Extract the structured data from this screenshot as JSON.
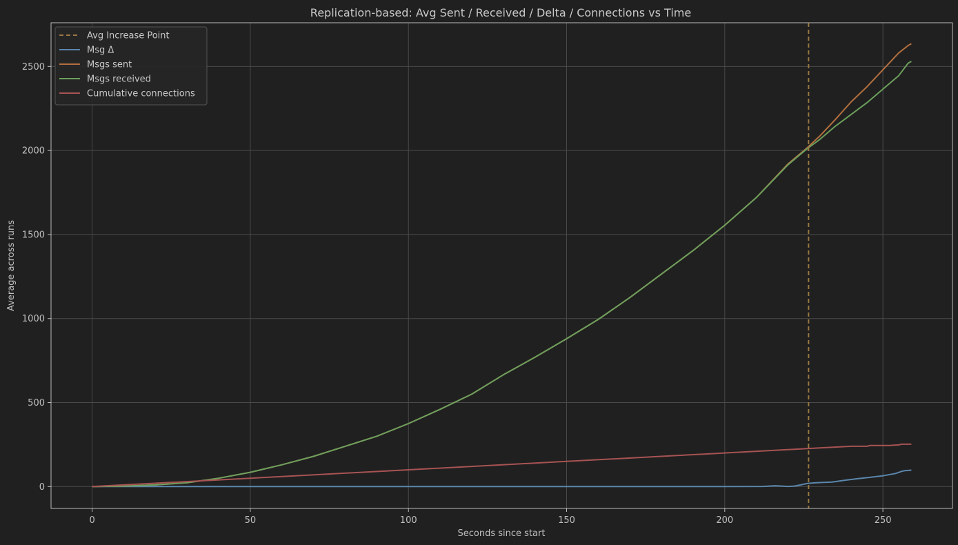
{
  "colors": {
    "background": "#202020",
    "axes_face": "#202020",
    "grid": "#4a4a4a",
    "spine": "#bdbdbd",
    "text": "#c8c8c8",
    "legend_bg": "#262626",
    "legend_edge": "#555555"
  },
  "chart_data": {
    "type": "line",
    "title": "Replication-based: Avg Sent / Received / Delta / Connections vs Time",
    "xlabel": "Seconds since start",
    "ylabel": "Average across runs",
    "xlim": [
      -13,
      272
    ],
    "ylim": [
      -130,
      2760
    ],
    "xticks": [
      0,
      50,
      100,
      150,
      200,
      250
    ],
    "yticks": [
      0,
      500,
      1000,
      1500,
      2000,
      2500
    ],
    "grid": true,
    "legend_position": "top-left",
    "vline": {
      "name": "Avg Increase Point",
      "x": 226.5,
      "color": "#9a7840",
      "style": "dashed"
    },
    "series": [
      {
        "name": "Msg Δ",
        "color": "#5b87ad",
        "x": [
          0,
          200,
          212,
          216,
          218,
          220,
          222,
          224,
          226,
          228,
          230,
          234,
          238,
          242,
          246,
          250,
          254,
          256,
          257,
          259
        ],
        "y": [
          0,
          0,
          1,
          5,
          3,
          1,
          3,
          10,
          18,
          22,
          24,
          27,
          38,
          47,
          55,
          64,
          78,
          91,
          95,
          98
        ]
      },
      {
        "name": "Msgs sent",
        "color": "#b36f3f",
        "x": [
          0,
          10,
          20,
          30,
          40,
          50,
          60,
          70,
          80,
          90,
          100,
          110,
          120,
          130,
          140,
          150,
          160,
          170,
          180,
          190,
          200,
          210,
          220,
          226,
          230,
          235,
          240,
          245,
          250,
          255,
          258,
          259
        ],
        "y": [
          0,
          3,
          10,
          23,
          50,
          85,
          130,
          180,
          240,
          300,
          375,
          460,
          550,
          665,
          770,
          880,
          995,
          1125,
          1265,
          1405,
          1555,
          1720,
          1920,
          2015,
          2085,
          2185,
          2290,
          2380,
          2480,
          2580,
          2625,
          2635
        ]
      },
      {
        "name": "Msgs received",
        "color": "#6c9f5c",
        "x": [
          0,
          10,
          20,
          30,
          40,
          50,
          60,
          70,
          80,
          90,
          100,
          110,
          120,
          130,
          140,
          150,
          160,
          170,
          180,
          190,
          200,
          210,
          220,
          226,
          230,
          235,
          240,
          245,
          250,
          255,
          258,
          259
        ],
        "y": [
          0,
          3,
          10,
          23,
          50,
          85,
          130,
          180,
          240,
          300,
          375,
          460,
          550,
          665,
          770,
          880,
          995,
          1125,
          1265,
          1405,
          1555,
          1720,
          1915,
          2010,
          2065,
          2145,
          2215,
          2285,
          2365,
          2445,
          2520,
          2530
        ]
      },
      {
        "name": "Cumulative connections",
        "color": "#a85353",
        "x": [
          0,
          50,
          100,
          150,
          200,
          226,
          240,
          245,
          246,
          252,
          255,
          256,
          259
        ],
        "y": [
          0,
          50,
          100,
          150,
          200,
          226,
          240,
          240,
          245,
          245,
          248,
          252,
          252
        ]
      }
    ]
  }
}
